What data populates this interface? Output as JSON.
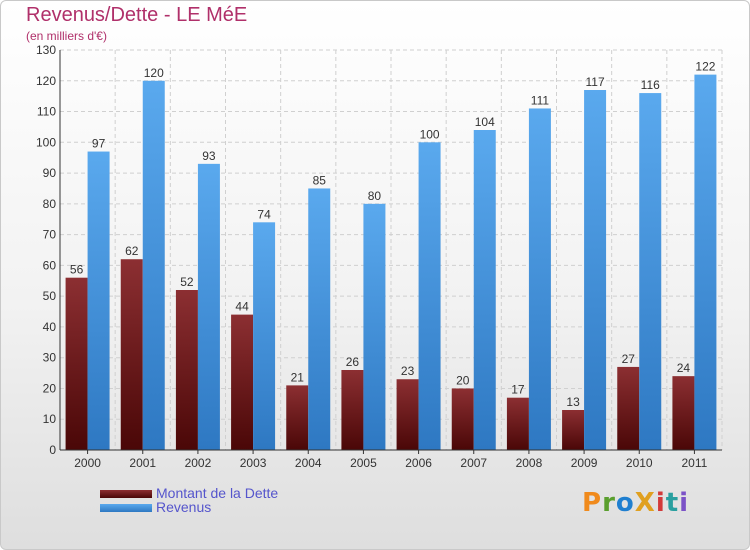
{
  "title": "Revenus/Dette - LE MéE",
  "subtitle": "(en milliers d'€)",
  "logo": "ProXiti",
  "colors": {
    "debt_top": "#8c2f32",
    "debt_bottom": "#4a0707",
    "revenue_top": "#5aa9ee",
    "revenue_bottom": "#2e78c2",
    "title": "#b0306a",
    "legend_text": "#5555cc"
  },
  "chart_data": {
    "type": "bar",
    "categories": [
      "2000",
      "2001",
      "2002",
      "2003",
      "2004",
      "2005",
      "2006",
      "2007",
      "2008",
      "2009",
      "2010",
      "2011"
    ],
    "series": [
      {
        "name": "Montant de la Dette",
        "values": [
          56,
          62,
          52,
          44,
          21,
          26,
          23,
          20,
          17,
          13,
          27,
          24
        ]
      },
      {
        "name": "Revenus",
        "values": [
          97,
          120,
          93,
          74,
          85,
          80,
          100,
          104,
          111,
          117,
          116,
          122
        ]
      }
    ],
    "ylim": [
      0,
      130
    ],
    "yticks": [
      0,
      10,
      20,
      30,
      40,
      50,
      60,
      70,
      80,
      90,
      100,
      110,
      120,
      130
    ],
    "grid": true,
    "legend": "bottom-left"
  }
}
